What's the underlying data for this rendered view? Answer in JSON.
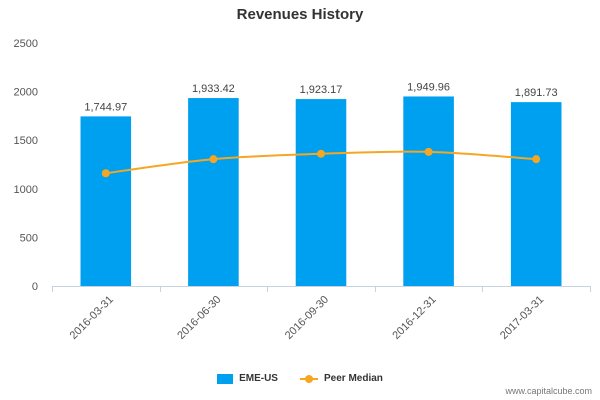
{
  "chart_data": {
    "type": "bar",
    "title": "Revenues History",
    "categories": [
      "2016-03-31",
      "2016-06-30",
      "2016-09-30",
      "2016-12-31",
      "2017-03-31"
    ],
    "series": [
      {
        "name": "EME-US",
        "type": "bar",
        "color": "#00a0f0",
        "values": [
          1744.97,
          1933.42,
          1923.17,
          1949.96,
          1891.73
        ],
        "labels": [
          "1,744.97",
          "1,933.42",
          "1,923.17",
          "1,949.96",
          "1,891.73"
        ]
      },
      {
        "name": "Peer Median",
        "type": "line",
        "color": "#f5a623",
        "values": [
          1160,
          1305,
          1360,
          1380,
          1305
        ]
      }
    ],
    "ylim": [
      0,
      2500
    ],
    "yticks": [
      0,
      500,
      1000,
      1500,
      2000,
      2500
    ],
    "ytick_labels": [
      "0",
      "500",
      "1000",
      "1500",
      "2000",
      "2500"
    ],
    "grid": false,
    "legend_position": "bottom"
  },
  "watermark": "www.capitalcube.com"
}
